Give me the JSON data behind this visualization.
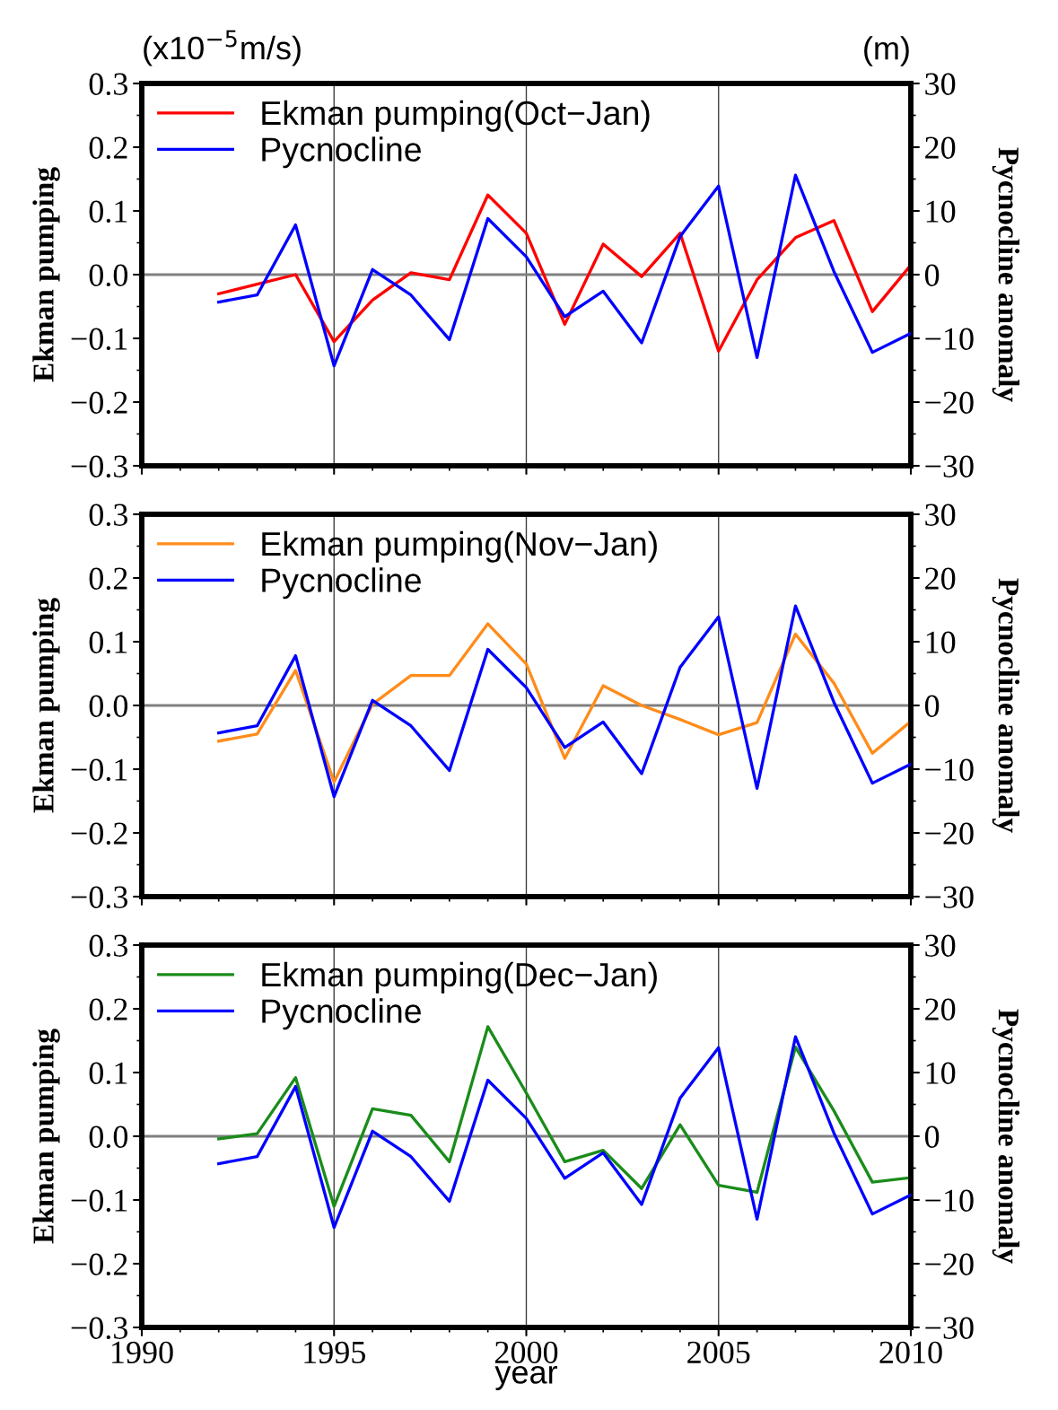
{
  "chart_data": [
    {
      "type": "line",
      "ylabel": "Ekman pumping",
      "y2label": "Pycnocline anomaly",
      "annotations": [
        "(x10$^{−5}$m/s)",
        "(m)"
      ],
      "x": [
        1992,
        1993,
        1994,
        1995,
        1996,
        1997,
        1998,
        1999,
        2000,
        2001,
        2002,
        2003,
        2004,
        2005,
        2006,
        2007,
        2008,
        2009,
        2010
      ],
      "series": [
        {
          "name": "Ekman pumping(Oct−Jan)",
          "color": "#ff0000",
          "values": [
            -0.03,
            -0.015,
            0.0,
            -0.105,
            -0.04,
            0.003,
            -0.008,
            0.125,
            0.065,
            -0.078,
            0.048,
            -0.003,
            0.065,
            -0.12,
            -0.008,
            0.058,
            0.085,
            -0.058,
            0.015
          ]
        },
        {
          "name": "Pycnocline",
          "color": "#0000ff",
          "axis": "y2",
          "values": [
            -4.3,
            -3.2,
            7.8,
            -14.3,
            0.8,
            -3.2,
            -10.2,
            8.8,
            2.8,
            -6.6,
            -2.6,
            -10.7,
            6.0,
            13.9,
            -13.0,
            15.6,
            0.5,
            -12.2,
            -9.2
          ]
        }
      ],
      "xlim": [
        1990,
        2010
      ],
      "xticks": [
        1990,
        1995,
        2000,
        2005,
        2010
      ],
      "ylim": [
        -0.3,
        0.3
      ],
      "yticks": [
        {
          "value": 0.3,
          "label": "0.3"
        },
        {
          "value": 0.2,
          "label": "0.2"
        },
        {
          "value": 0.1,
          "label": "0.1"
        },
        {
          "value": 0.0,
          "label": "0.0"
        },
        {
          "value": -0.1,
          "label": "−0.1"
        },
        {
          "value": -0.2,
          "label": "−0.2"
        },
        {
          "value": -0.3,
          "label": "−0.3"
        }
      ],
      "y2lim": [
        -30,
        30
      ],
      "y2ticks": [
        30,
        20,
        10,
        0,
        {
          "value": -10,
          "label": "−10"
        },
        {
          "value": -20,
          "label": "−20"
        },
        {
          "value": -30,
          "label": "−30"
        }
      ],
      "ref_lines": [
        {
          "axis": "y",
          "value": 0,
          "color": "#808080"
        }
      ],
      "grid": "x",
      "legend": "top left",
      "tick_labels": "y",
      "line_style": "solid"
    },
    {
      "type": "line",
      "ylabel": "Ekman pumping",
      "y2label": "Pycnocline anomaly",
      "x": [
        1992,
        1993,
        1994,
        1995,
        1996,
        1997,
        1998,
        1999,
        2000,
        2001,
        2002,
        2003,
        2004,
        2005,
        2006,
        2007,
        2008,
        2009,
        2010
      ],
      "series": [
        {
          "name": "Ekman pumping(Nov−Jan)",
          "color": "#ff8c1a",
          "values": [
            -0.056,
            -0.045,
            0.055,
            -0.12,
            0.002,
            0.047,
            0.047,
            0.128,
            0.065,
            -0.083,
            0.031,
            0.0,
            -0.022,
            -0.046,
            -0.027,
            0.112,
            0.035,
            -0.075,
            -0.025
          ]
        },
        {
          "name": "Pycnocline",
          "color": "#0000ff",
          "axis": "y2",
          "values": [
            -4.3,
            -3.2,
            7.8,
            -14.3,
            0.8,
            -3.2,
            -10.2,
            8.8,
            2.8,
            -6.6,
            -2.6,
            -10.7,
            6.0,
            13.9,
            -13.0,
            15.6,
            0.5,
            -12.2,
            -9.2
          ]
        }
      ],
      "xlim": [
        1990,
        2010
      ],
      "xticks": [
        1990,
        1995,
        2000,
        2005,
        2010
      ],
      "ylim": [
        -0.3,
        0.3
      ],
      "yticks": [
        {
          "value": 0.3,
          "label": "0.3"
        },
        {
          "value": 0.2,
          "label": "0.2"
        },
        {
          "value": 0.1,
          "label": "0.1"
        },
        {
          "value": 0.0,
          "label": "0.0"
        },
        {
          "value": -0.1,
          "label": "−0.1"
        },
        {
          "value": -0.2,
          "label": "−0.2"
        },
        {
          "value": -0.3,
          "label": "−0.3"
        }
      ],
      "y2lim": [
        -30,
        30
      ],
      "y2ticks": [
        30,
        20,
        10,
        0,
        {
          "value": -10,
          "label": "−10"
        },
        {
          "value": -20,
          "label": "−20"
        },
        {
          "value": -30,
          "label": "−30"
        }
      ],
      "ref_lines": [
        {
          "axis": "y",
          "value": 0,
          "color": "#808080"
        }
      ],
      "grid": "x",
      "legend": "top left",
      "tick_labels": "y",
      "line_style": "solid"
    },
    {
      "type": "line",
      "xlabel": "year",
      "ylabel": "Ekman pumping",
      "y2label": "Pycnocline anomaly",
      "x": [
        1992,
        1993,
        1994,
        1995,
        1996,
        1997,
        1998,
        1999,
        2000,
        2001,
        2002,
        2003,
        2004,
        2005,
        2006,
        2007,
        2008,
        2009,
        2010
      ],
      "series": [
        {
          "name": "Ekman pumping(Dec−Jan)",
          "color": "#1a8c1a",
          "values": [
            -0.004,
            0.004,
            0.092,
            -0.11,
            0.043,
            0.033,
            -0.04,
            0.172,
            0.068,
            -0.04,
            -0.022,
            -0.082,
            0.018,
            -0.077,
            -0.088,
            0.14,
            0.04,
            -0.072,
            -0.065
          ]
        },
        {
          "name": "Pycnocline",
          "color": "#0000ff",
          "axis": "y2",
          "values": [
            -4.3,
            -3.2,
            7.8,
            -14.3,
            0.8,
            -3.2,
            -10.2,
            8.8,
            2.8,
            -6.6,
            -2.6,
            -10.7,
            6.0,
            13.9,
            -13.0,
            15.6,
            0.5,
            -12.2,
            -9.2
          ]
        }
      ],
      "xlim": [
        1990,
        2010
      ],
      "xticks": [
        1990,
        1995,
        2000,
        2005,
        2010
      ],
      "ylim": [
        -0.3,
        0.3
      ],
      "yticks": [
        {
          "value": 0.3,
          "label": "0.3"
        },
        {
          "value": 0.2,
          "label": "0.2"
        },
        {
          "value": 0.1,
          "label": "0.1"
        },
        {
          "value": 0.0,
          "label": "0.0"
        },
        {
          "value": -0.1,
          "label": "−0.1"
        },
        {
          "value": -0.2,
          "label": "−0.2"
        },
        {
          "value": -0.3,
          "label": "−0.3"
        }
      ],
      "y2lim": [
        -30,
        30
      ],
      "y2ticks": [
        30,
        20,
        10,
        0,
        {
          "value": -10,
          "label": "−10"
        },
        {
          "value": -20,
          "label": "−20"
        },
        {
          "value": -30,
          "label": "−30"
        }
      ],
      "ref_lines": [
        {
          "axis": "y",
          "value": 0,
          "color": "#808080"
        }
      ],
      "grid": "x",
      "legend": "top left",
      "line_style": "solid"
    }
  ]
}
